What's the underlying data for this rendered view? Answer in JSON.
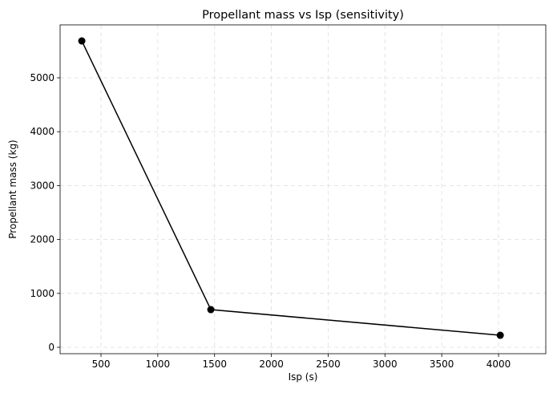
{
  "chart_data": {
    "type": "line",
    "title": "Propellant mass vs Isp (sensitivity)",
    "x_label": "Isp (s)",
    "y_label": "Propellant mass (kg)",
    "x": [
      331,
      1467,
      4015
    ],
    "series": [
      {
        "name": "Propellant mass",
        "color": "#000000",
        "values": [
          5684,
          699,
          223
        ]
      }
    ],
    "xlim": [
      140,
      4416
    ],
    "ylim": [
      -119,
      5982
    ],
    "xticks": [
      500,
      1000,
      1500,
      2000,
      2500,
      3000,
      3500,
      4000
    ],
    "yticks": [
      0,
      1000,
      2000,
      3000,
      4000,
      5000
    ],
    "grid": true,
    "marker": "circle"
  }
}
